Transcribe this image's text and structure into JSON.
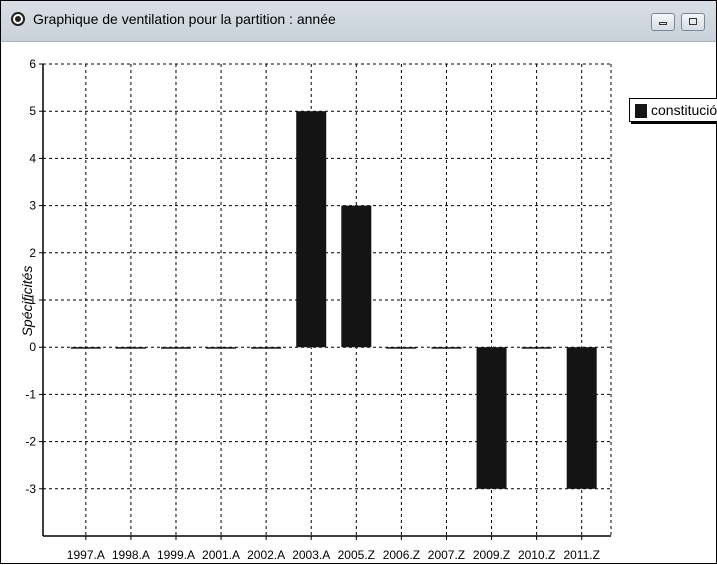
{
  "window": {
    "title": "Graphique de ventilation pour la partition : année"
  },
  "colors": {
    "bar": "#141414",
    "grid": "#000000"
  },
  "legend": {
    "label": "constitución",
    "placement": "top-right"
  },
  "chart_data": {
    "type": "bar",
    "categories": [
      "1997.A",
      "1998.A",
      "1999.A",
      "2001.A",
      "2002.A",
      "2003.A",
      "2005.Z",
      "2006.Z",
      "2007.Z",
      "2009.Z",
      "2010.Z",
      "2011.Z"
    ],
    "series": [
      {
        "name": "constitución",
        "values": [
          0,
          0,
          0,
          0,
          0,
          5,
          3,
          0,
          0,
          -3,
          0,
          -3
        ]
      }
    ],
    "xlabel": "",
    "ylabel": "Spécificités",
    "ylim": [
      -4,
      6
    ],
    "yticks": [
      6,
      5,
      4,
      3,
      2,
      1,
      0,
      -1,
      -2,
      -3
    ],
    "grid": true
  }
}
